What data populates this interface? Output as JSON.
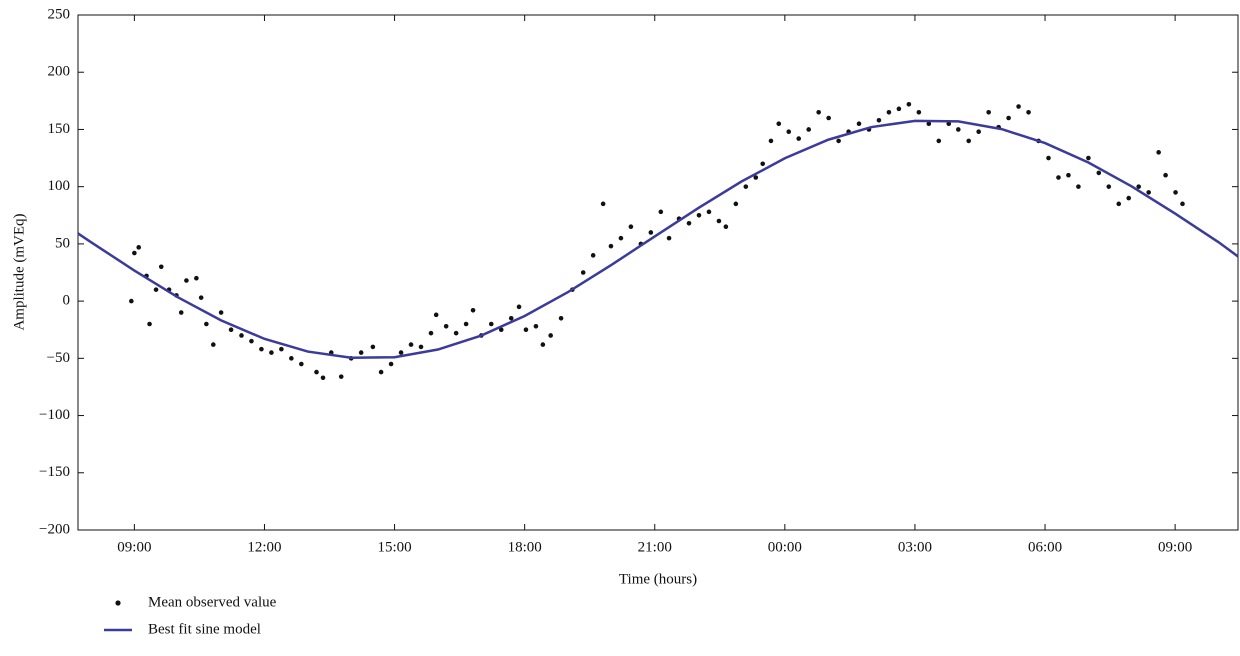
{
  "chart_data": {
    "type": "scatter",
    "xlabel": "Time (hours)",
    "ylabel": "Amplitude (mVEq)",
    "xlim": [
      7.7,
      34.45
    ],
    "ylim": [
      -200,
      250
    ],
    "xticks": [
      {
        "value": 9,
        "label": "09:00"
      },
      {
        "value": 12,
        "label": "12:00"
      },
      {
        "value": 15,
        "label": "15:00"
      },
      {
        "value": 18,
        "label": "18:00"
      },
      {
        "value": 21,
        "label": "21:00"
      },
      {
        "value": 24,
        "label": "00:00"
      },
      {
        "value": 27,
        "label": "03:00"
      },
      {
        "value": 30,
        "label": "06:00"
      },
      {
        "value": 33,
        "label": "09:00"
      }
    ],
    "yticks": [
      {
        "value": -200,
        "label": "−200"
      },
      {
        "value": -150,
        "label": "−150"
      },
      {
        "value": -100,
        "label": "−100"
      },
      {
        "value": -50,
        "label": "−50"
      },
      0,
      50,
      100,
      150,
      200,
      250
    ],
    "legend": "below-left",
    "series": [
      {
        "name": "Mean observed value",
        "type": "scatter",
        "color": "#111111",
        "x": [
          8.93,
          9.0,
          9.1,
          9.28,
          9.35,
          9.5,
          9.62,
          9.8,
          9.97,
          10.08,
          10.2,
          10.43,
          10.54,
          10.66,
          10.82,
          11.0,
          11.23,
          11.47,
          11.7,
          11.93,
          12.16,
          12.39,
          12.62,
          12.85,
          13.2,
          13.35,
          13.54,
          13.77,
          14.0,
          14.23,
          14.5,
          14.69,
          14.92,
          15.15,
          15.38,
          15.61,
          15.84,
          15.96,
          16.19,
          16.42,
          16.65,
          16.81,
          17.0,
          17.23,
          17.46,
          17.69,
          17.87,
          18.03,
          18.26,
          18.42,
          18.6,
          18.84,
          19.1,
          19.35,
          19.58,
          19.81,
          19.99,
          20.22,
          20.45,
          20.68,
          20.91,
          21.14,
          21.33,
          21.56,
          21.79,
          22.02,
          22.25,
          22.48,
          22.64,
          22.87,
          23.1,
          23.33,
          23.49,
          23.68,
          23.86,
          24.09,
          24.32,
          24.55,
          24.78,
          25.01,
          25.24,
          25.47,
          25.71,
          25.94,
          26.17,
          26.4,
          26.63,
          26.86,
          27.09,
          27.32,
          27.55,
          27.78,
          28.0,
          28.24,
          28.47,
          28.7,
          28.93,
          29.16,
          29.39,
          29.62,
          29.85,
          30.08,
          30.31,
          30.54,
          30.77,
          31.0,
          31.24,
          31.47,
          31.7,
          31.93,
          32.16,
          32.39,
          32.62,
          32.78,
          33.01,
          33.17
        ],
        "values": [
          0,
          42,
          47,
          22,
          -20,
          10,
          30,
          10,
          5,
          -10,
          18,
          20,
          3,
          -20,
          -38,
          -10,
          -25,
          -30,
          -35,
          -42,
          -45,
          -42,
          -50,
          -55,
          -62,
          -67,
          -45,
          -66,
          -50,
          -45,
          -40,
          -62,
          -55,
          -45,
          -38,
          -40,
          -28,
          -12,
          -22,
          -28,
          -20,
          -8,
          -30,
          -20,
          -25,
          -15,
          -5,
          -25,
          -22,
          -38,
          -30,
          -15,
          10,
          25,
          40,
          85,
          48,
          55,
          65,
          50,
          60,
          78,
          55,
          72,
          68,
          75,
          78,
          70,
          65,
          85,
          100,
          108,
          120,
          140,
          155,
          148,
          142,
          150,
          165,
          160,
          140,
          148,
          155,
          150,
          158,
          165,
          168,
          172,
          165,
          155,
          140,
          155,
          150,
          140,
          148,
          165,
          152,
          160,
          170,
          165,
          140,
          125,
          108,
          110,
          100,
          125,
          112,
          100,
          85,
          90,
          100,
          95,
          130,
          110,
          95,
          85
        ]
      },
      {
        "name": "Best fit sine model",
        "type": "line",
        "color": "#3b3b9c",
        "x": [
          7.7,
          8,
          9,
          10,
          11,
          12,
          13,
          14,
          15,
          16,
          17,
          18,
          19,
          20,
          21,
          22,
          23,
          24,
          25,
          26,
          27,
          28,
          29,
          30,
          31,
          32,
          33,
          34,
          34.45
        ],
        "values": [
          59.1,
          51.5,
          26.7,
          3.4,
          -16.8,
          -33.0,
          -44.1,
          -49.5,
          -49.0,
          -42.3,
          -30.1,
          -13.0,
          7.9,
          31.6,
          56.5,
          81.2,
          104.5,
          124.8,
          141.0,
          152.1,
          157.5,
          157.0,
          150.3,
          138.1,
          121.1,
          100.2,
          76.5,
          51.5,
          39.0
        ]
      }
    ]
  }
}
